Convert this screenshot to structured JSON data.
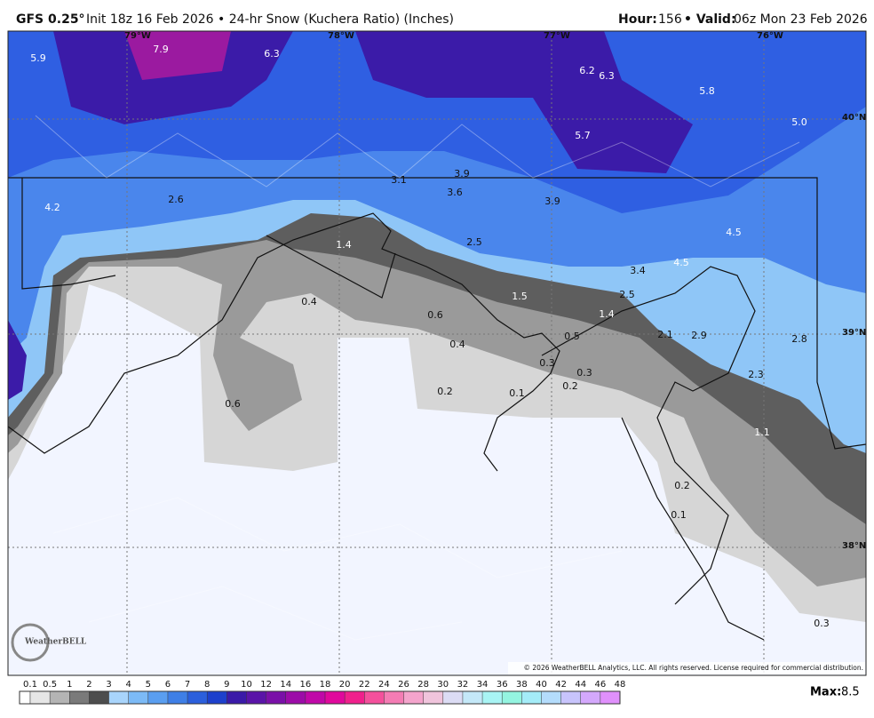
{
  "header": {
    "model": "GFS 0.25°",
    "title": "Init 18z 16 Feb 2026 • 24-hr Snow (Kuchera Ratio) (Inches)",
    "hour_label": "Hour:",
    "hour": "156",
    "valid_label": "• Valid:",
    "valid": "06z Mon 23 Feb 2026"
  },
  "map": {
    "longitudes": [
      "79°W",
      "78°W",
      "77°W",
      "76°W"
    ],
    "latitudes": [
      "40°N",
      "39°N",
      "38°N"
    ],
    "value_labels": [
      "5.9",
      "7.9",
      "6.3",
      "6.2",
      "6.3",
      "5.8",
      "5.7",
      "5.0",
      "4.2",
      "3.1",
      "3.9",
      "3.6",
      "3.9",
      "2.6",
      "1.4",
      "2.5",
      "4.5",
      "4.5",
      "3.4",
      "2.5",
      "1.5",
      "1.4",
      "0.4",
      "0.6",
      "0.5",
      "2.1",
      "2.9",
      "2.8",
      "0.4",
      "0.3",
      "0.3",
      "2.3",
      "0.2",
      "0.2",
      "0.1",
      "0.6",
      "1.1",
      "0.2",
      "0.1",
      "0.3"
    ],
    "logo": "WeatherBELL",
    "copyright": "© 2026 WeatherBELL Analytics, LLC. All rights reserved. License required for commercial distribution."
  },
  "colorbar": {
    "ticks": [
      0.1,
      0.5,
      1,
      2,
      3,
      4,
      5,
      6,
      7,
      8,
      9,
      10,
      12,
      14,
      16,
      18,
      20,
      22,
      24,
      26,
      28,
      30,
      32,
      34,
      36,
      38,
      40,
      42,
      44,
      46,
      48
    ],
    "colors": [
      "#e6e6e6",
      "#b4b4b4",
      "#7a7a7a",
      "#4d4d4d",
      "#a8d4fb",
      "#7cbaf6",
      "#5a9ef0",
      "#3f7fe6",
      "#2b5fdc",
      "#1d40cc",
      "#3a1aa8",
      "#5a14a8",
      "#7a10a8",
      "#9c0ca8",
      "#c008a8",
      "#e0089c",
      "#f0208c",
      "#f4509c",
      "#f47cb4",
      "#f4a4cc",
      "#f0c4dc",
      "#dcdcf4",
      "#c4e8f8",
      "#a8f4f4",
      "#94f4e0",
      "#a4ecf8",
      "#b4dcfc",
      "#c8c4fc",
      "#d4a8fc",
      "#e090fc"
    ],
    "max_label": "Max:",
    "max": "8.5"
  }
}
